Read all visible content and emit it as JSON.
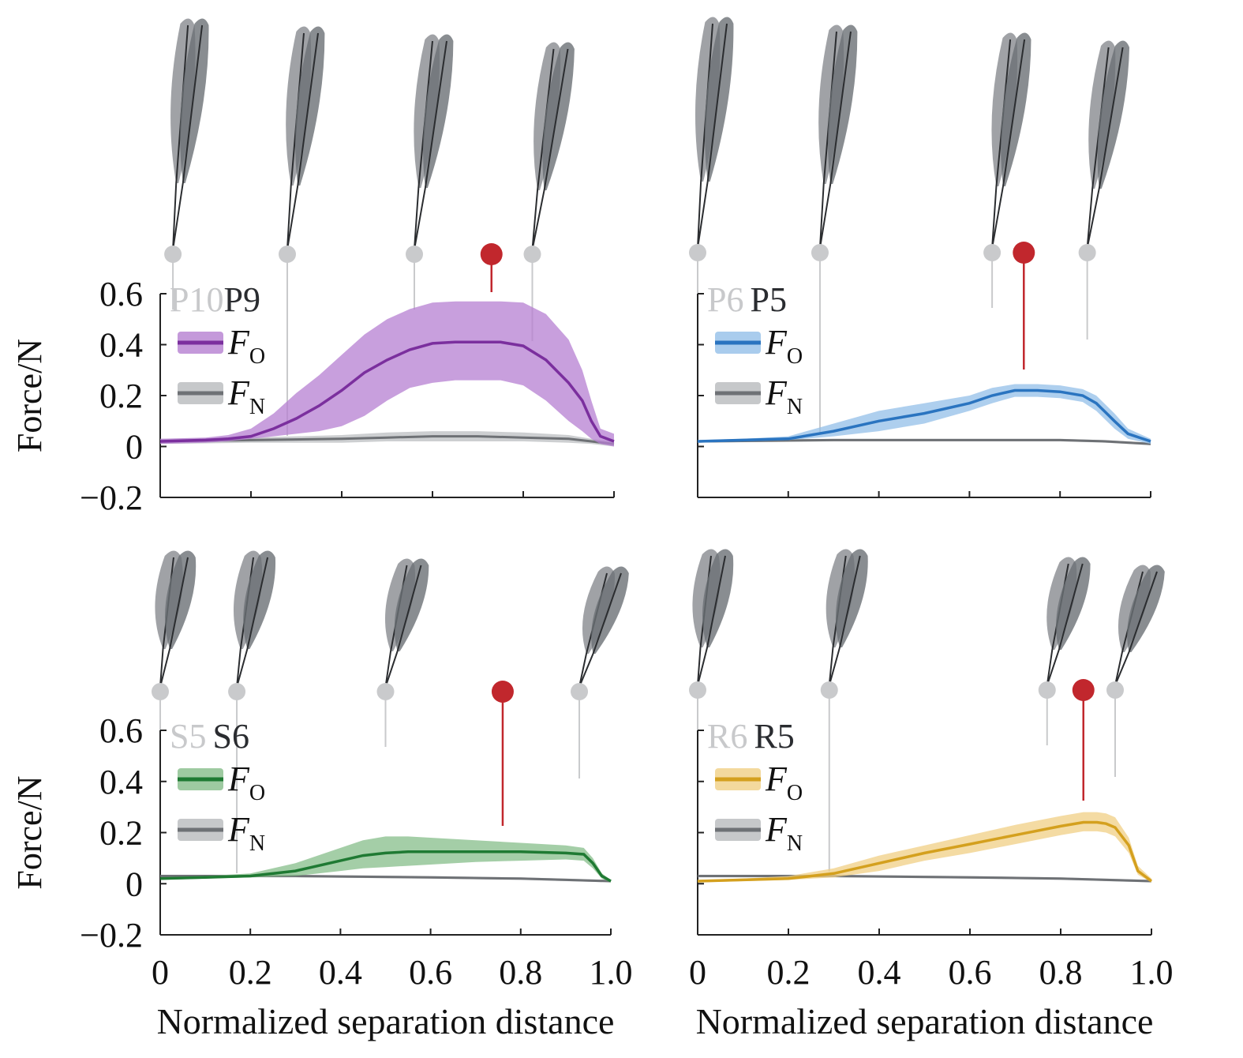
{
  "figure": {
    "ylabel": "Force/N",
    "xlabel": "Normalized separation distance",
    "feather_color": "#8f9296",
    "feather_shadow": "#6c7075",
    "marker_color": "#c1272d",
    "neutral_color": "#6e7175"
  },
  "chart_data": [
    {
      "type": "line",
      "label_light": "P10",
      "label_dark": "P9",
      "color": "#7b2f9e",
      "band_color": "#b57fd1",
      "xlim": [
        0,
        1.0
      ],
      "ylim": [
        -0.2,
        0.6
      ],
      "yticks": [
        "0.6",
        "0.4",
        "0.2",
        "0",
        "−0.2"
      ],
      "xticks": [
        "0",
        "0.2",
        "0.4",
        "0.6",
        "0.8",
        "1.0"
      ],
      "show_ylabel": true,
      "show_xticks": false,
      "legend": [
        {
          "name": "F",
          "sub": "O"
        },
        {
          "name": "F",
          "sub": "N"
        }
      ],
      "event_lines": [
        0.028,
        0.28,
        0.56,
        0.82
      ],
      "peak_marker": 0.73,
      "series": [
        {
          "name": "F_O",
          "x": [
            0,
            0.1,
            0.15,
            0.2,
            0.25,
            0.3,
            0.35,
            0.4,
            0.45,
            0.5,
            0.55,
            0.6,
            0.65,
            0.7,
            0.75,
            0.8,
            0.85,
            0.9,
            0.93,
            0.95,
            0.97,
            1.0
          ],
          "y": [
            0.02,
            0.025,
            0.03,
            0.04,
            0.07,
            0.11,
            0.16,
            0.22,
            0.29,
            0.34,
            0.38,
            0.405,
            0.41,
            0.41,
            0.41,
            0.395,
            0.34,
            0.25,
            0.18,
            0.1,
            0.04,
            0.02
          ],
          "upper": [
            0.03,
            0.035,
            0.045,
            0.07,
            0.13,
            0.21,
            0.28,
            0.36,
            0.44,
            0.5,
            0.54,
            0.565,
            0.57,
            0.57,
            0.57,
            0.565,
            0.52,
            0.42,
            0.3,
            0.18,
            0.07,
            0.05
          ],
          "lower": [
            0.01,
            0.015,
            0.02,
            0.03,
            0.04,
            0.05,
            0.06,
            0.08,
            0.12,
            0.18,
            0.23,
            0.25,
            0.26,
            0.26,
            0.26,
            0.24,
            0.18,
            0.1,
            0.06,
            0.03,
            0.01,
            0.0
          ]
        },
        {
          "name": "F_N",
          "x": [
            0,
            0.2,
            0.4,
            0.5,
            0.6,
            0.7,
            0.8,
            0.9,
            0.95,
            1.0
          ],
          "y": [
            0.02,
            0.025,
            0.03,
            0.035,
            0.04,
            0.04,
            0.035,
            0.03,
            0.02,
            0.01
          ],
          "upper": [
            0.03,
            0.035,
            0.045,
            0.055,
            0.06,
            0.06,
            0.055,
            0.045,
            0.03,
            0.02
          ],
          "lower": [
            0.01,
            0.015,
            0.015,
            0.02,
            0.02,
            0.02,
            0.02,
            0.015,
            0.01,
            0.0
          ]
        }
      ]
    },
    {
      "type": "line",
      "label_light": "P6",
      "label_dark": "P5",
      "color": "#2a74c0",
      "band_color": "#93bfe8",
      "xlim": [
        0,
        1.0
      ],
      "ylim": [
        -0.2,
        0.6
      ],
      "yticks": [
        "0.6",
        "0.4",
        "0.2",
        "0",
        "−0.2"
      ],
      "xticks": [
        "0",
        "0.2",
        "0.4",
        "0.6",
        "0.8",
        "1.0"
      ],
      "show_ylabel": false,
      "show_xticks": false,
      "legend": [
        {
          "name": "F",
          "sub": "O"
        },
        {
          "name": "F",
          "sub": "N"
        }
      ],
      "event_lines": [
        0.0,
        0.27,
        0.65,
        0.86
      ],
      "peak_marker": 0.72,
      "series": [
        {
          "name": "F_O",
          "x": [
            0,
            0.1,
            0.2,
            0.3,
            0.4,
            0.5,
            0.6,
            0.65,
            0.7,
            0.75,
            0.8,
            0.85,
            0.88,
            0.92,
            0.95,
            1.0
          ],
          "y": [
            0.02,
            0.025,
            0.03,
            0.06,
            0.1,
            0.13,
            0.17,
            0.2,
            0.22,
            0.22,
            0.215,
            0.2,
            0.17,
            0.1,
            0.05,
            0.02
          ],
          "upper": [
            0.025,
            0.03,
            0.04,
            0.09,
            0.14,
            0.17,
            0.2,
            0.23,
            0.245,
            0.245,
            0.24,
            0.225,
            0.2,
            0.13,
            0.07,
            0.03
          ],
          "lower": [
            0.015,
            0.02,
            0.025,
            0.04,
            0.06,
            0.09,
            0.14,
            0.17,
            0.195,
            0.195,
            0.19,
            0.175,
            0.14,
            0.07,
            0.03,
            0.01
          ]
        },
        {
          "name": "F_N",
          "x": [
            0,
            0.3,
            0.6,
            0.8,
            0.9,
            1.0
          ],
          "y": [
            0.02,
            0.025,
            0.025,
            0.025,
            0.02,
            0.01
          ],
          "upper": [
            0.025,
            0.03,
            0.03,
            0.03,
            0.025,
            0.015
          ],
          "lower": [
            0.015,
            0.02,
            0.02,
            0.02,
            0.015,
            0.005
          ]
        }
      ]
    },
    {
      "type": "line",
      "label_light": "S5",
      "label_dark": "S6",
      "color": "#1f7a33",
      "band_color": "#86bd8a",
      "xlim": [
        0,
        1.0
      ],
      "ylim": [
        -0.2,
        0.6
      ],
      "yticks": [
        "0.6",
        "0.4",
        "0.2",
        "0",
        "−0.2"
      ],
      "xticks": [
        "0",
        "0.2",
        "0.4",
        "0.6",
        "0.8",
        "1.0"
      ],
      "show_ylabel": true,
      "show_xticks": true,
      "legend": [
        {
          "name": "F",
          "sub": "O"
        },
        {
          "name": "F",
          "sub": "N"
        }
      ],
      "event_lines": [
        0.0,
        0.17,
        0.5,
        0.93
      ],
      "peak_marker": 0.76,
      "series": [
        {
          "name": "F_O",
          "x": [
            0,
            0.1,
            0.2,
            0.3,
            0.4,
            0.45,
            0.5,
            0.55,
            0.6,
            0.7,
            0.8,
            0.9,
            0.94,
            0.96,
            0.98,
            1.0
          ],
          "y": [
            0.02,
            0.025,
            0.03,
            0.05,
            0.09,
            0.11,
            0.12,
            0.125,
            0.125,
            0.125,
            0.125,
            0.12,
            0.115,
            0.08,
            0.03,
            0.01
          ],
          "upper": [
            0.025,
            0.03,
            0.04,
            0.08,
            0.14,
            0.17,
            0.185,
            0.185,
            0.18,
            0.17,
            0.16,
            0.15,
            0.14,
            0.1,
            0.04,
            0.015
          ],
          "lower": [
            0.015,
            0.02,
            0.025,
            0.03,
            0.05,
            0.06,
            0.065,
            0.07,
            0.075,
            0.085,
            0.09,
            0.095,
            0.09,
            0.06,
            0.02,
            0.005
          ]
        },
        {
          "name": "F_N",
          "x": [
            0,
            0.3,
            0.6,
            0.8,
            0.9,
            1.0
          ],
          "y": [
            0.03,
            0.03,
            0.025,
            0.02,
            0.015,
            0.01
          ],
          "upper": [
            0.035,
            0.035,
            0.03,
            0.025,
            0.02,
            0.015
          ],
          "lower": [
            0.025,
            0.025,
            0.02,
            0.015,
            0.01,
            0.005
          ]
        }
      ]
    },
    {
      "type": "line",
      "label_light": "R6",
      "label_dark": "R5",
      "color": "#d4a01e",
      "band_color": "#f0cf84",
      "xlim": [
        0,
        1.0
      ],
      "ylim": [
        -0.2,
        0.6
      ],
      "yticks": [
        "0.6",
        "0.4",
        "0.2",
        "0",
        "−0.2"
      ],
      "xticks": [
        "0",
        "0.2",
        "0.4",
        "0.6",
        "0.8",
        "1.0"
      ],
      "show_ylabel": false,
      "show_xticks": true,
      "legend": [
        {
          "name": "F",
          "sub": "O"
        },
        {
          "name": "F",
          "sub": "N"
        }
      ],
      "event_lines": [
        0.0,
        0.29,
        0.77,
        0.92
      ],
      "peak_marker": 0.85,
      "series": [
        {
          "name": "F_O",
          "x": [
            0,
            0.1,
            0.2,
            0.3,
            0.4,
            0.5,
            0.6,
            0.7,
            0.8,
            0.85,
            0.88,
            0.9,
            0.92,
            0.95,
            0.97,
            1.0
          ],
          "y": [
            0.01,
            0.015,
            0.02,
            0.04,
            0.08,
            0.12,
            0.155,
            0.19,
            0.225,
            0.24,
            0.24,
            0.235,
            0.22,
            0.15,
            0.05,
            0.01
          ],
          "upper": [
            0.015,
            0.02,
            0.03,
            0.06,
            0.11,
            0.15,
            0.19,
            0.23,
            0.265,
            0.28,
            0.28,
            0.275,
            0.26,
            0.18,
            0.07,
            0.02
          ],
          "lower": [
            0.005,
            0.01,
            0.015,
            0.025,
            0.05,
            0.09,
            0.12,
            0.155,
            0.19,
            0.205,
            0.205,
            0.2,
            0.185,
            0.12,
            0.035,
            0.005
          ]
        },
        {
          "name": "F_N",
          "x": [
            0,
            0.3,
            0.6,
            0.8,
            0.9,
            1.0
          ],
          "y": [
            0.03,
            0.03,
            0.025,
            0.02,
            0.015,
            0.01
          ],
          "upper": [
            0.035,
            0.035,
            0.03,
            0.025,
            0.02,
            0.015
          ],
          "lower": [
            0.025,
            0.025,
            0.02,
            0.015,
            0.01,
            0.005
          ]
        }
      ]
    }
  ]
}
